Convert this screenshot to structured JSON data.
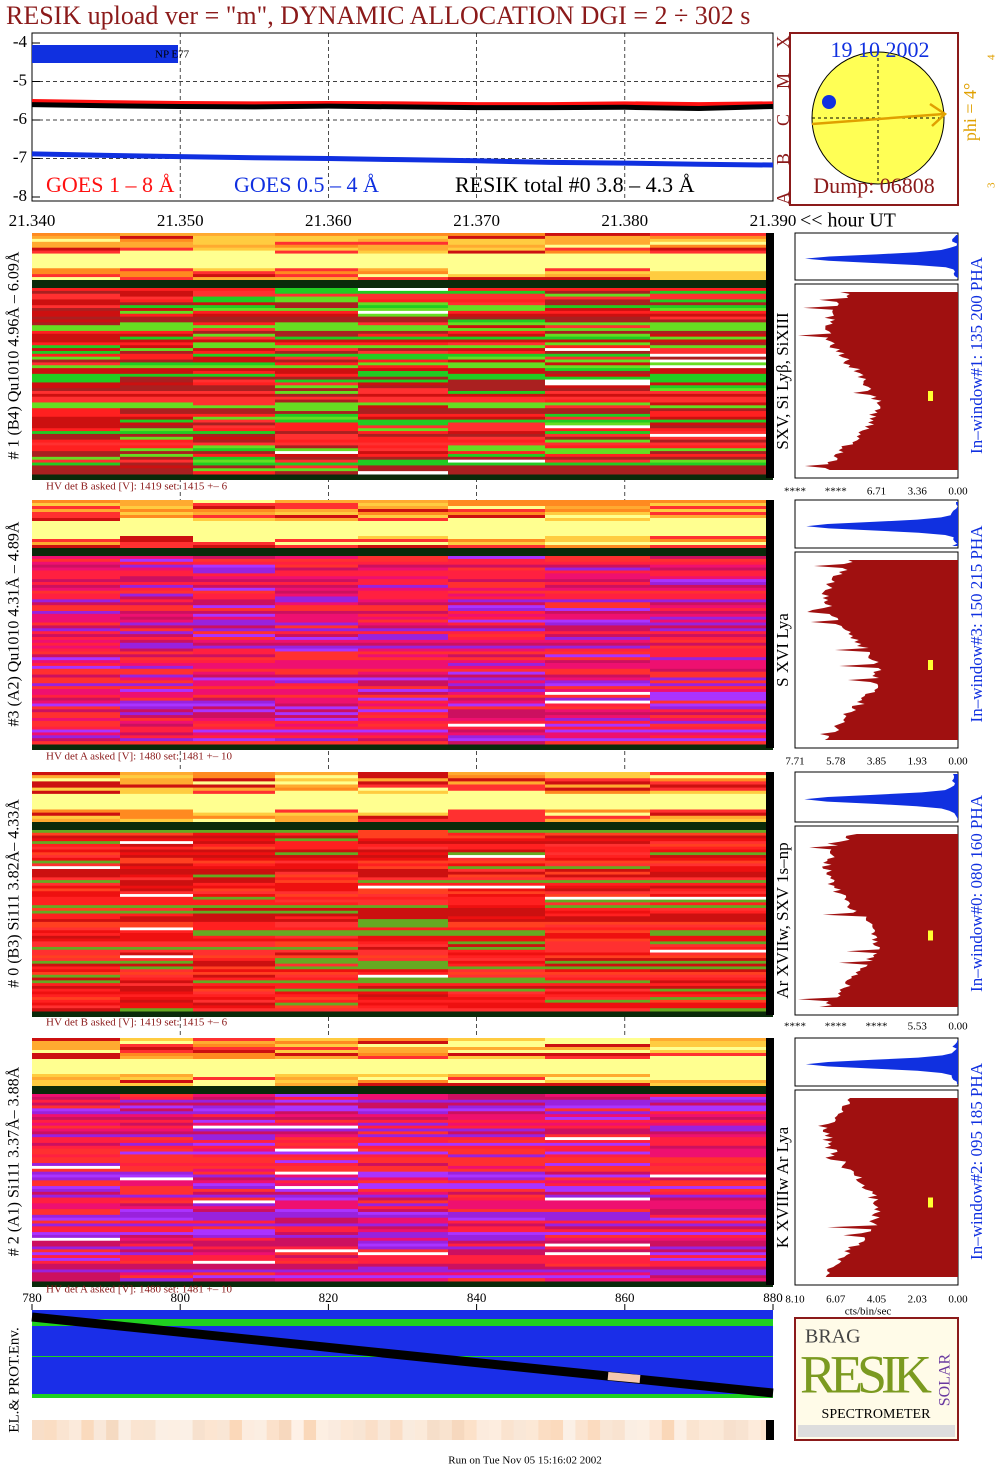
{
  "title": "RESIK upload ver = \"m\", DYNAMIC ALLOCATION  DGI =   2 ÷ 302 s",
  "chart_data": {
    "type": "line",
    "xlim": [
      21.34,
      21.39
    ],
    "xticks": [
      {
        "value": 21.34,
        "label": "21.340"
      },
      {
        "value": 21.35,
        "label": "21.350"
      },
      {
        "value": 21.36,
        "label": "21.360"
      },
      {
        "value": 21.37,
        "label": "21.370"
      },
      {
        "value": 21.38,
        "label": "21.380"
      },
      {
        "value": 21.39,
        "label": "21.390"
      }
    ],
    "x_axis_label": "<< hour UT",
    "ylim": [
      -8,
      -4
    ],
    "yticks": [
      -4,
      -5,
      -6,
      -7,
      -8
    ],
    "grid": true,
    "annotation": "NP E77",
    "x": [
      21.34,
      21.345,
      21.35,
      21.355,
      21.36,
      21.365,
      21.37,
      21.375,
      21.38,
      21.385,
      21.39
    ],
    "series": [
      {
        "name": "GOES 1 – 8 Å",
        "color": "#ff1010",
        "values": [
          -5.52,
          -5.55,
          -5.57,
          -5.58,
          -5.57,
          -5.58,
          -5.6,
          -5.6,
          -5.58,
          -5.6,
          -5.58
        ]
      },
      {
        "name": "GOES 0.5 – 4 Å",
        "color": "#1030e0",
        "values": [
          -6.88,
          -6.92,
          -6.95,
          -6.98,
          -7.0,
          -7.03,
          -7.06,
          -7.1,
          -7.12,
          -7.15,
          -7.17
        ]
      },
      {
        "name": "RESIK total #0  3.8 – 4.3 Å",
        "color": "#000000",
        "values": [
          -5.6,
          -5.63,
          -5.65,
          -5.66,
          -5.64,
          -5.66,
          -5.68,
          -5.68,
          -5.67,
          -5.7,
          -5.65
        ]
      }
    ]
  },
  "solar_disk": {
    "date": "19 10 2002",
    "dump": "Dump: 06808",
    "classes": [
      "X",
      "M",
      "C",
      "B",
      "A"
    ],
    "phi": "phi =  4°",
    "phi_ticks": [
      "4",
      "3"
    ]
  },
  "detectors": [
    {
      "label": "# 1 (B4) Qu1010 4.96Å – 6.09Å",
      "lines": "SXV, Si Lyβ, SiXIII",
      "hv": "HV det B asked [V]:  1419 set:  1415  +–   6",
      "spectrum_ticks": [
        "****",
        "****",
        "6.71",
        "3.36",
        "0.00"
      ],
      "window": "In–window#1:  135 200 PHA"
    },
    {
      "label": "#3 (A2) Qu1010  4.31Å – 4.89Å",
      "lines": "S XVI Lya",
      "hv": "HV det A asked [V]:  1480 set:  1481  +–   10",
      "spectrum_ticks": [
        "7.71",
        "5.78",
        "3.85",
        "1.93",
        "0.00"
      ],
      "window": "In–window#3:  150 215 PHA"
    },
    {
      "label": "# 0 (B3) Si111  3.82Å– 4.33Å",
      "lines": "Ar XVIIw,  SXV  1s–np",
      "hv": "HV det B asked [V]:  1419 set:  1415  +–   6",
      "spectrum_ticks": [
        "****",
        "****",
        "****",
        "5.53",
        "0.00"
      ],
      "window": "In–window#0:  080 160 PHA"
    },
    {
      "label": "# 2 (A1) Si111  3.37Å– 3.88Å",
      "lines": "K XVIIIw   Ar Lya",
      "hv": "HV det A asked [V]:  1480 set:  1481  +–   10",
      "spectrum_ticks": [
        "8.10",
        "6.07",
        "4.05",
        "2.03",
        "0.00"
      ],
      "window": "In–window#2:  095 185 PHA"
    }
  ],
  "spectrum_axis_label": "cts/bin/sec",
  "env": {
    "label": "EL.& PROT.Env.",
    "xlim": [
      780,
      880
    ],
    "xticks": [
      780,
      800,
      820,
      840,
      860,
      880
    ]
  },
  "logo": {
    "brag": "BRAG",
    "resik": "RESIK",
    "solar": "SOLAR",
    "spectrometer": "SPECTROMETER"
  },
  "footer": "Run on Tue Nov 05 15:16:02 2002"
}
